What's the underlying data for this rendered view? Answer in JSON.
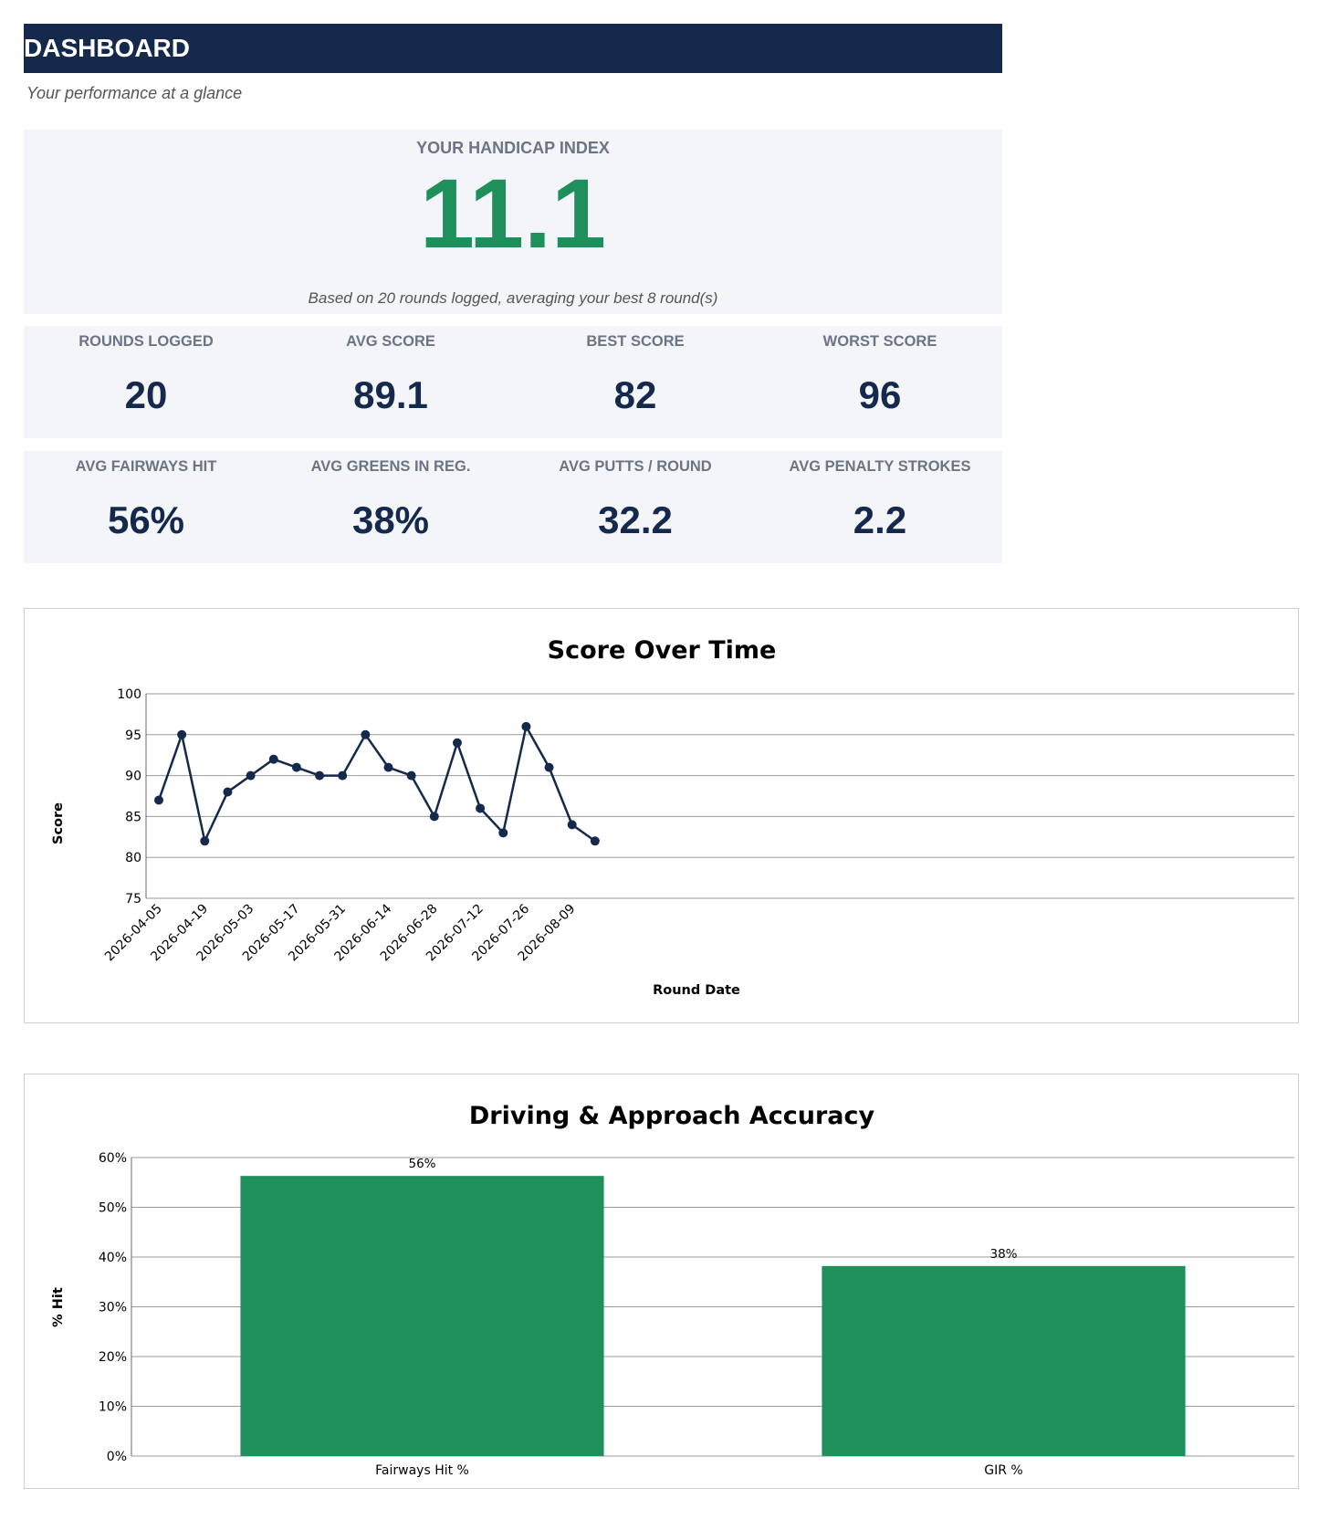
{
  "header": {
    "title": "DASHBOARD",
    "subtitle": "Your performance at a glance"
  },
  "handicap": {
    "label": "YOUR HANDICAP INDEX",
    "value": "11.1",
    "note": "Based on 20 rounds logged, averaging your best 8 round(s)"
  },
  "stats_row1": [
    {
      "label": "ROUNDS LOGGED",
      "value": "20"
    },
    {
      "label": "AVG SCORE",
      "value": "89.1"
    },
    {
      "label": "BEST SCORE",
      "value": "82"
    },
    {
      "label": "WORST SCORE",
      "value": "96"
    }
  ],
  "stats_row2": [
    {
      "label": "AVG FAIRWAYS HIT",
      "value": "56%"
    },
    {
      "label": "AVG GREENS IN REG.",
      "value": "38%"
    },
    {
      "label": "AVG PUTTS / ROUND",
      "value": "32.2"
    },
    {
      "label": "AVG PENALTY STROKES",
      "value": "2.2"
    }
  ],
  "colors": {
    "header_bg": "#15294d",
    "accent_green": "#1f8f5c",
    "panel_bg": "#f4f5f8",
    "line_color": "#15294d"
  },
  "chart_data": [
    {
      "type": "line",
      "title": "Score Over Time",
      "xlabel": "Round Date",
      "ylabel": "Score",
      "ylim": [
        75,
        100
      ],
      "yticks": [
        75,
        80,
        85,
        90,
        95,
        100
      ],
      "x_tick_labels": [
        "2026-04-05",
        "2026-04-19",
        "2026-05-03",
        "2026-05-17",
        "2026-05-31",
        "2026-06-14",
        "2026-06-28",
        "2026-07-12",
        "2026-07-26",
        "2026-08-09"
      ],
      "values": [
        87,
        95,
        82,
        88,
        90,
        92,
        91,
        90,
        90,
        95,
        91,
        90,
        85,
        94,
        86,
        83,
        96,
        91,
        84,
        82
      ],
      "grid": true,
      "marker": "circle"
    },
    {
      "type": "bar",
      "title": "Driving & Approach Accuracy",
      "xlabel": "",
      "ylabel": "% Hit",
      "ylim": [
        0,
        60
      ],
      "yticks": [
        "0%",
        "10%",
        "20%",
        "30%",
        "40%",
        "50%",
        "60%"
      ],
      "categories": [
        "Fairways Hit %",
        "GIR %"
      ],
      "values": [
        56.3,
        38.2
      ],
      "data_labels": [
        "56%",
        "38%"
      ],
      "grid": true
    }
  ]
}
